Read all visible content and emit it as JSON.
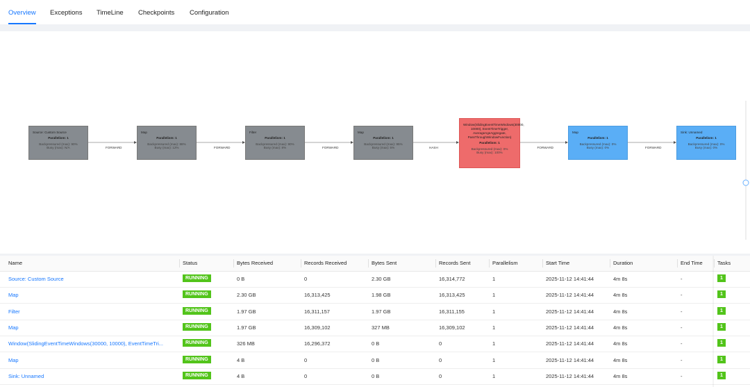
{
  "tabs": [
    "Overview",
    "Exceptions",
    "TimeLine",
    "Checkpoints",
    "Configuration"
  ],
  "nodes": [
    {
      "name": "Source: Custom Source",
      "parallelism": "Parallelism: 1",
      "backpressure": "Backpressured (max): 90%",
      "busy": "Busy (max): N/A",
      "state": "gray"
    },
    {
      "name": "Map",
      "parallelism": "Parallelism: 1",
      "backpressure": "Backpressured (max): 88%",
      "busy": "Busy (max): 12%",
      "state": "gray"
    },
    {
      "name": "Filter",
      "parallelism": "Parallelism: 1",
      "backpressure": "Backpressured (max): 90%",
      "busy": "Busy (max): 8%",
      "state": "gray"
    },
    {
      "name": "Map",
      "parallelism": "Parallelism: 1",
      "backpressure": "Backpressured (max): 95%",
      "busy": "Busy (max): 5%",
      "state": "gray"
    },
    {
      "name": "Window(SlidingEventTimeWindows(30000, 10000), EventTimeTrigger, AverageAgeAggregate, PassThroughWindowFunction)",
      "parallelism": "Parallelism: 1",
      "backpressure": "Backpressured (max): 0%",
      "busy": "Busy (max): 100%",
      "state": "red"
    },
    {
      "name": "Map",
      "parallelism": "Parallelism: 1",
      "backpressure": "Backpressured (max): 0%",
      "busy": "Busy (max): 0%",
      "state": "blue"
    },
    {
      "name": "Sink: Unnamed",
      "parallelism": "Parallelism: 1",
      "backpressure": "Backpressured (max): 0%",
      "busy": "Busy (max): 0%",
      "state": "blue"
    }
  ],
  "edges": [
    "FORWARD",
    "FORWARD",
    "FORWARD",
    "HASH",
    "FORWARD",
    "FORWARD"
  ],
  "table": {
    "headers": [
      "Name",
      "Status",
      "Bytes Received",
      "Records Received",
      "Bytes Sent",
      "Records Sent",
      "Parallelism",
      "Start Time",
      "Duration",
      "End Time",
      "Tasks"
    ],
    "rows": [
      [
        "Source: Custom Source",
        "RUNNING",
        "0 B",
        "0",
        "2.30 GB",
        "16,314,772",
        "1",
        "2025-11-12 14:41:44",
        "4m 8s",
        "-",
        "1"
      ],
      [
        "Map",
        "RUNNING",
        "2.30 GB",
        "16,313,425",
        "1.98 GB",
        "16,313,425",
        "1",
        "2025-11-12 14:41:44",
        "4m 8s",
        "-",
        "1"
      ],
      [
        "Filter",
        "RUNNING",
        "1.97 GB",
        "16,311,157",
        "1.97 GB",
        "16,311,155",
        "1",
        "2025-11-12 14:41:44",
        "4m 8s",
        "-",
        "1"
      ],
      [
        "Map",
        "RUNNING",
        "1.97 GB",
        "16,309,102",
        "327 MB",
        "16,309,102",
        "1",
        "2025-11-12 14:41:44",
        "4m 8s",
        "-",
        "1"
      ],
      [
        "Window(SlidingEventTimeWindows(30000, 10000), EventTimeTri...",
        "RUNNING",
        "326 MB",
        "16,296,372",
        "0 B",
        "0",
        "1",
        "2025-11-12 14:41:44",
        "4m 8s",
        "-",
        "1"
      ],
      [
        "Map",
        "RUNNING",
        "4 B",
        "0",
        "0 B",
        "0",
        "1",
        "2025-11-12 14:41:44",
        "4m 8s",
        "-",
        "1"
      ],
      [
        "Sink: Unnamed",
        "RUNNING",
        "4 B",
        "0",
        "0 B",
        "0",
        "1",
        "2025-11-12 14:41:44",
        "4m 8s",
        "-",
        "1"
      ]
    ]
  }
}
